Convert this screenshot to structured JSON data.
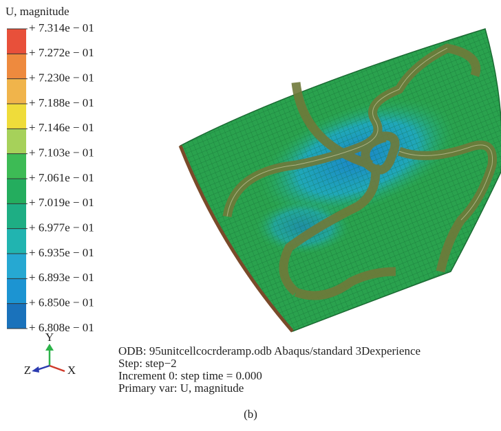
{
  "legend": {
    "title": "U, magnitude",
    "labels": [
      "+ 7.314e − 01",
      "+ 7.272e − 01",
      "+ 7.230e − 01",
      "+ 7.188e − 01",
      "+ 7.146e − 01",
      "+ 7.103e − 01",
      "+ 7.061e − 01",
      "+ 7.019e − 01",
      "+ 6.977e − 01",
      "+ 6.935e − 01",
      "+ 6.893e − 01",
      "+ 6.850e − 01",
      "+ 6.808e − 01"
    ],
    "colors": [
      "#e8503a",
      "#ee8a3e",
      "#f0b44b",
      "#efdc3a",
      "#a6d15a",
      "#3dbb55",
      "#24ad5e",
      "#1eae84",
      "#21b4b0",
      "#26a8d2",
      "#1c94d2",
      "#1a72bb",
      "#3d5aa6"
    ]
  },
  "info": {
    "lines": [
      "ODB: 95unitcellcocrderamp.odb   Abaqus/standard 3Dexperience",
      "Step: step−2",
      "Increment 0: step time = 0.000",
      "Primary var: U, magnitude"
    ]
  },
  "triad": {
    "y": "Y",
    "z": "Z",
    "x": "X"
  },
  "caption": "(b)"
}
